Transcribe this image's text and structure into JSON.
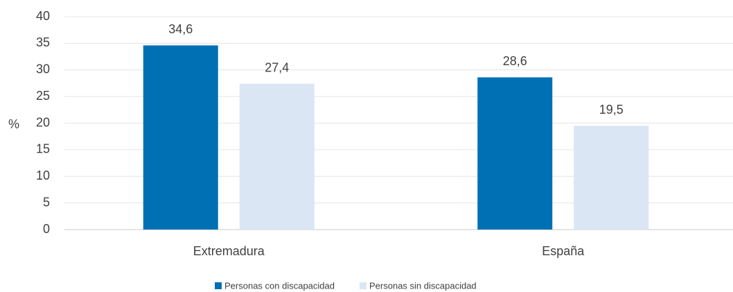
{
  "chart_data": {
    "type": "bar",
    "y_label": "%",
    "categories": [
      "Extremadura",
      "España"
    ],
    "series": [
      {
        "name": "Personas con discapacidad",
        "color": "#0070b4",
        "values": [
          34.6,
          28.6
        ],
        "value_labels": [
          "34,6",
          "28,6"
        ]
      },
      {
        "name": "Personas sin discapacidad",
        "color": "#dae6f3",
        "values": [
          27.4,
          19.5
        ],
        "value_labels": [
          "27,4",
          "19,5"
        ]
      }
    ],
    "ylim": [
      0,
      40
    ],
    "yticks": [
      0,
      5,
      10,
      15,
      20,
      25,
      30,
      35,
      40
    ],
    "grid": true,
    "legend": "bottom"
  }
}
